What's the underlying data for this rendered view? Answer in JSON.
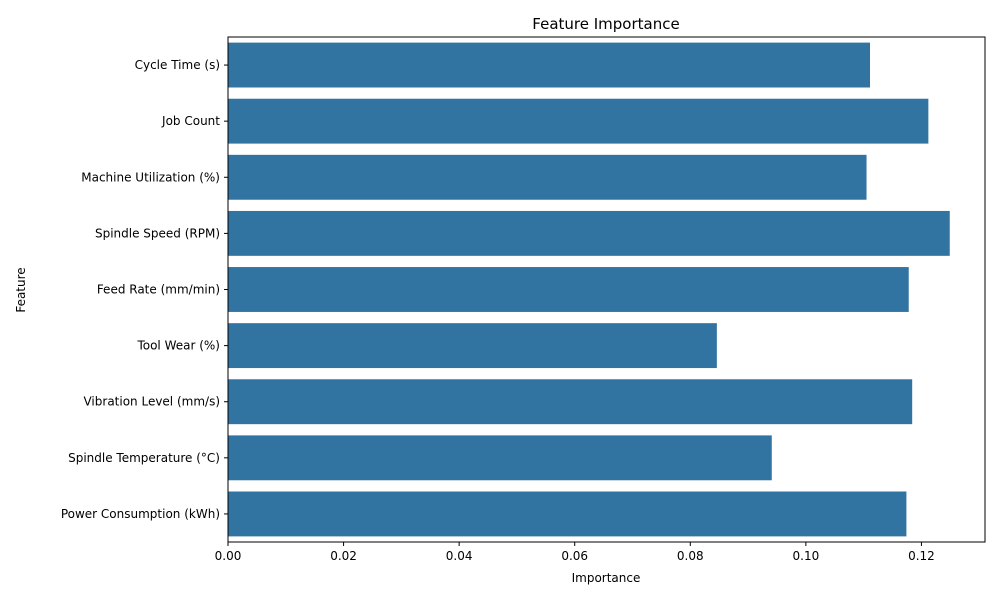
{
  "chart_data": {
    "type": "bar",
    "orientation": "horizontal",
    "title": "Feature Importance",
    "xlabel": "Importance",
    "ylabel": "Feature",
    "categories": [
      "Cycle Time (s)",
      "Job Count",
      "Machine Utilization (%)",
      "Spindle Speed (RPM)",
      "Feed Rate (mm/min)",
      "Tool Wear (%)",
      "Vibration Level (mm/s)",
      "Spindle Temperature (°C)",
      "Power Consumption (kWh)"
    ],
    "values": [
      0.1111,
      0.1212,
      0.1105,
      0.1249,
      0.1178,
      0.0846,
      0.1184,
      0.0941,
      0.1174
    ],
    "xlim": [
      0,
      0.131
    ],
    "xticks": [
      0.0,
      0.02,
      0.04,
      0.06,
      0.08,
      0.1,
      0.12
    ],
    "xtick_labels": [
      "0.00",
      "0.02",
      "0.04",
      "0.06",
      "0.08",
      "0.10",
      "0.12"
    ],
    "grid": false,
    "bar_color": "#3274a1"
  }
}
